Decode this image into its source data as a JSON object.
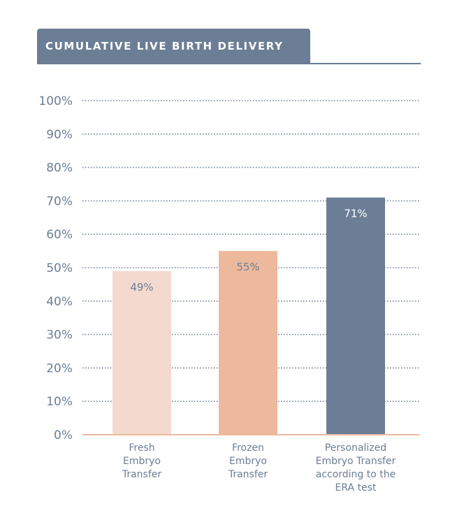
{
  "chart_data": {
    "type": "bar",
    "title": "CUMULATIVE LIVE BIRTH DELIVERY",
    "categories": [
      [
        "Fresh",
        "Embryo",
        "Transfer"
      ],
      [
        "Frozen",
        "Embryo",
        "Transfer"
      ],
      [
        "Personalized",
        "Embryo Transfer",
        "according to the",
        "ERA test"
      ]
    ],
    "values": [
      49,
      55,
      71
    ],
    "data_labels": [
      "49%",
      "55%",
      "71%"
    ],
    "bar_colors": [
      "#f4dace",
      "#edb99c",
      "#6b7e96"
    ],
    "label_colors": [
      "#6b7e96",
      "#6b7e96",
      "#ffffff"
    ],
    "ylim": [
      0,
      100
    ],
    "yticks": [
      "0%",
      "10%",
      "20%",
      "30%",
      "40%",
      "50%",
      "60%",
      "70%",
      "80%",
      "90%",
      "100%"
    ],
    "grid": true,
    "axis_color": "#edb99c",
    "text_color": "#6b7e96"
  }
}
